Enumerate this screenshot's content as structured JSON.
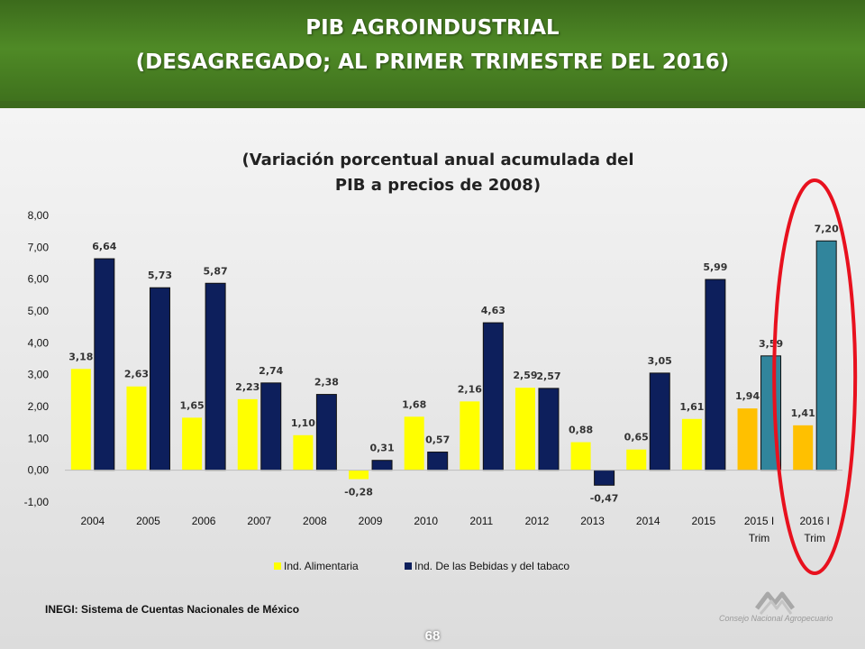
{
  "header": {
    "title_line1": "PIB AGROINDUSTRIAL",
    "title_line2": "(DESAGREGADO; AL PRIMER TRIMESTRE DEL 2016)"
  },
  "source_note": "INEGI: Sistema de Cuentas Nacionales de México",
  "page_number": "68",
  "logo": {
    "caption": "Consejo Nacional Agropecuario"
  },
  "colors": {
    "header_green": "#4f8a26",
    "alimentaria": "#ffff00",
    "bebidas": "#0d1f5c",
    "alimentaria_quarter": "#ffc000",
    "bebidas_quarter": "#31859c",
    "highlight_ellipse": "#e8111e"
  },
  "chart_data": {
    "type": "bar",
    "title": "(Variación porcentual anual acumulada del PIB a precios de 2008)",
    "title_lines": [
      "(Variación porcentual anual acumulada del",
      "PIB a precios de 2008)"
    ],
    "xlabel": "",
    "ylabel": "",
    "ylim": [
      -1,
      8
    ],
    "yticks": [
      -1,
      0,
      1,
      2,
      3,
      4,
      5,
      6,
      7,
      8
    ],
    "ytick_labels": [
      "-1,00",
      "0,00",
      "1,00",
      "2,00",
      "3,00",
      "4,00",
      "5,00",
      "6,00",
      "7,00",
      "8,00"
    ],
    "grid": false,
    "categories": [
      "2004",
      "2005",
      "2006",
      "2007",
      "2008",
      "2009",
      "2010",
      "2011",
      "2012",
      "2013",
      "2014",
      "2015",
      "2015 I Trim",
      "2016 I Trim"
    ],
    "category_lines": [
      [
        "2004"
      ],
      [
        "2005"
      ],
      [
        "2006"
      ],
      [
        "2007"
      ],
      [
        "2008"
      ],
      [
        "2009"
      ],
      [
        "2010"
      ],
      [
        "2011"
      ],
      [
        "2012"
      ],
      [
        "2013"
      ],
      [
        "2014"
      ],
      [
        "2015"
      ],
      [
        "2015 I",
        "Trim"
      ],
      [
        "2016 I",
        "Trim"
      ]
    ],
    "series": [
      {
        "name": "Ind. Alimentaria",
        "values": [
          3.18,
          2.63,
          1.65,
          2.23,
          1.1,
          -0.28,
          1.68,
          2.16,
          2.59,
          0.88,
          0.65,
          1.61,
          1.94,
          1.41
        ],
        "labels": [
          "3,18",
          "2,63",
          "1,65",
          "2,23",
          "1,10",
          "-0,28",
          "1,68",
          "2,16",
          "2,59",
          "0,88",
          "0,65",
          "1,61",
          "1,94",
          "1,41"
        ]
      },
      {
        "name": "Ind. De las Bebidas y del tabaco",
        "values": [
          6.64,
          5.73,
          5.87,
          2.74,
          2.38,
          0.31,
          0.57,
          4.63,
          2.57,
          -0.47,
          3.05,
          5.99,
          3.59,
          7.2
        ],
        "labels": [
          "6,64",
          "5,73",
          "5,87",
          "2,74",
          "2,38",
          "0,31",
          "0,57",
          "4,63",
          "2,57",
          "-0,47",
          "3,05",
          "5,99",
          "3,59",
          "7,20"
        ]
      }
    ],
    "legend_position": "bottom",
    "highlighted_category": "2016 I Trim"
  }
}
